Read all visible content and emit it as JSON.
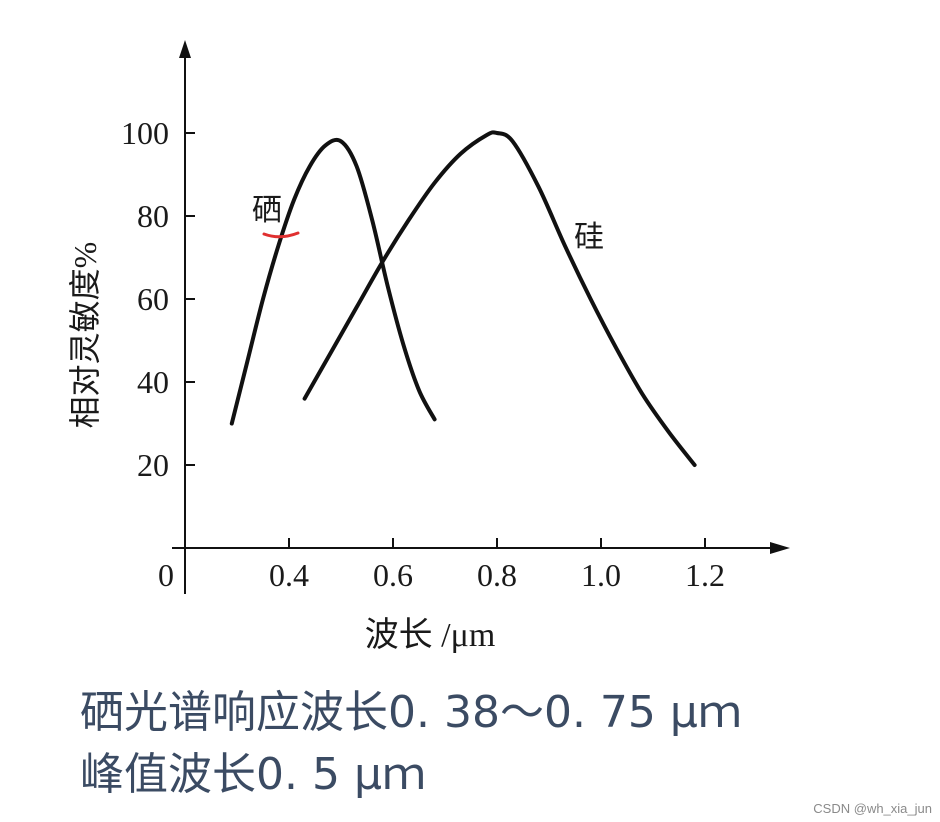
{
  "chart_data": {
    "type": "line",
    "xlabel": "波长 /μm",
    "ylabel": "相对灵敏度%",
    "xlim": [
      0.2,
      1.35
    ],
    "ylim": [
      0,
      120
    ],
    "x_origin_label": "0",
    "x_ticks": [
      0.4,
      0.6,
      0.8,
      1.0,
      1.2
    ],
    "x_tick_labels": [
      "0.4",
      "0.6",
      "0.8",
      "1.0",
      "1.2"
    ],
    "y_ticks": [
      20,
      40,
      60,
      80,
      100
    ],
    "y_tick_labels": [
      "20",
      "40",
      "60",
      "80",
      "100"
    ],
    "series": [
      {
        "name": "硒",
        "color": "#111111",
        "points": [
          [
            0.29,
            30
          ],
          [
            0.32,
            45
          ],
          [
            0.35,
            60
          ],
          [
            0.38,
            73
          ],
          [
            0.41,
            84
          ],
          [
            0.44,
            92
          ],
          [
            0.47,
            97
          ],
          [
            0.5,
            98
          ],
          [
            0.53,
            92
          ],
          [
            0.56,
            79
          ],
          [
            0.59,
            63
          ],
          [
            0.62,
            49
          ],
          [
            0.65,
            38
          ],
          [
            0.68,
            31
          ]
        ]
      },
      {
        "name": "硅",
        "color": "#111111",
        "points": [
          [
            0.43,
            36
          ],
          [
            0.48,
            47
          ],
          [
            0.53,
            58
          ],
          [
            0.58,
            69
          ],
          [
            0.63,
            79
          ],
          [
            0.68,
            88
          ],
          [
            0.73,
            95
          ],
          [
            0.78,
            99.5
          ],
          [
            0.8,
            100
          ],
          [
            0.83,
            98
          ],
          [
            0.88,
            87
          ],
          [
            0.93,
            73
          ],
          [
            0.98,
            60
          ],
          [
            1.03,
            48
          ],
          [
            1.08,
            37
          ],
          [
            1.13,
            28
          ],
          [
            1.18,
            20
          ]
        ]
      }
    ],
    "annotation_mark": {
      "color": "#e03030"
    }
  },
  "captions": {
    "line1": "硒光谱响应波长0. 38～0. 75 μｍ",
    "line2": "峰值波长0. 5 μｍ"
  },
  "watermark": "CSDN @wh_xia_jun"
}
